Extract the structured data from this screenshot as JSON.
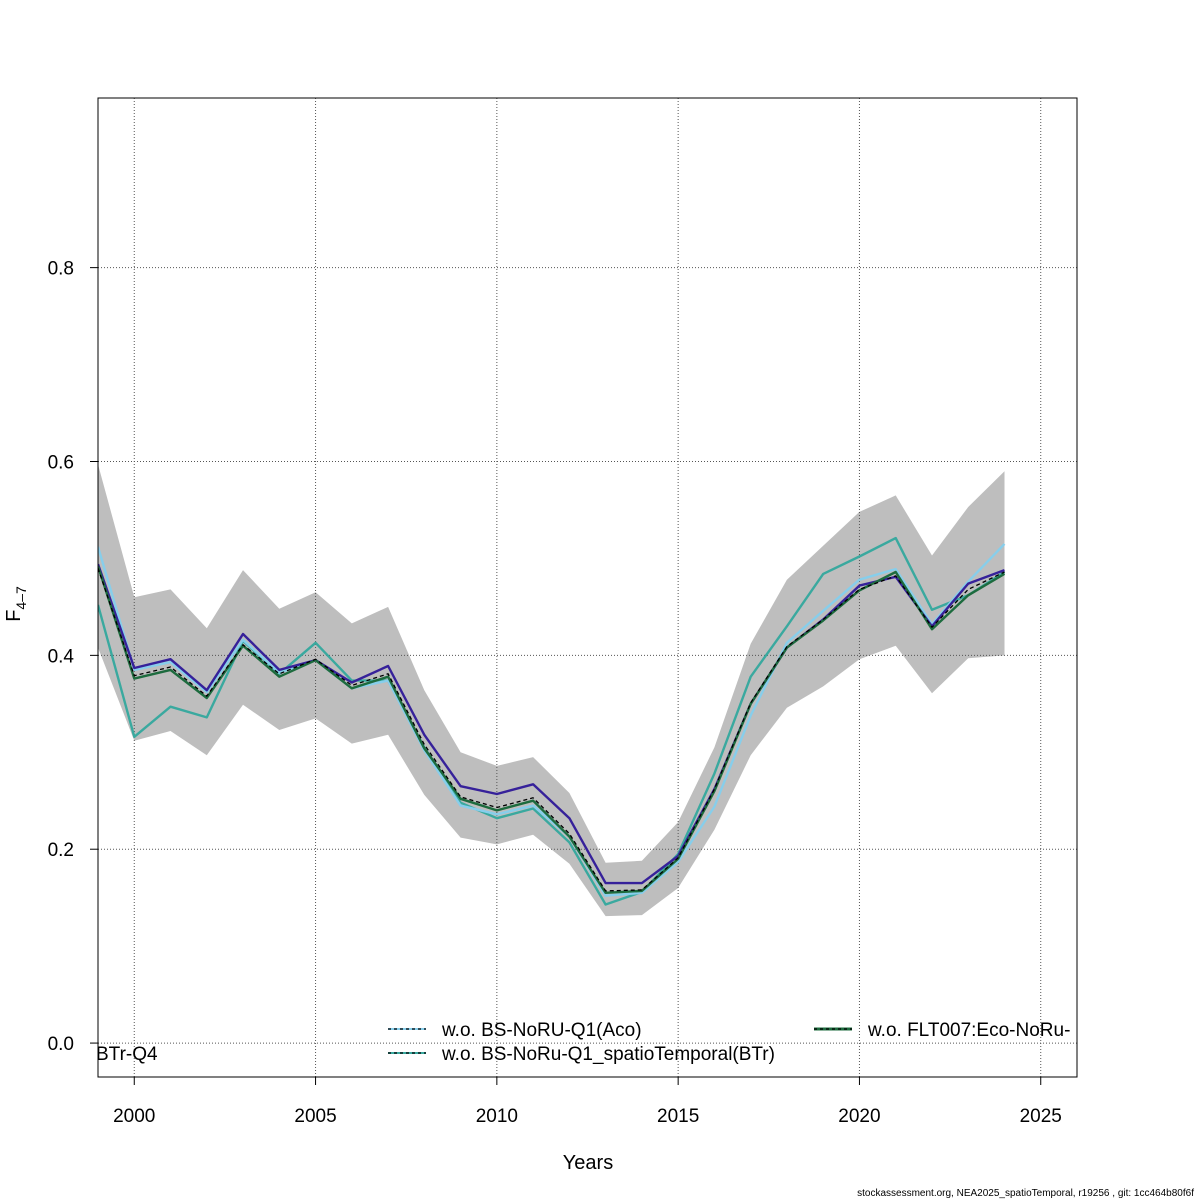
{
  "chart_data": {
    "type": "line",
    "xlabel": "Years",
    "ylabel": "F",
    "ylabel_sub": "4–7",
    "xlim": [
      1999,
      2026
    ],
    "ylim": [
      -0.035,
      0.975
    ],
    "xticks": [
      2000,
      2005,
      2010,
      2015,
      2020,
      2025
    ],
    "yticks": [
      0.0,
      0.2,
      0.4,
      0.6,
      0.8
    ],
    "ytick_labels": [
      "0.0",
      "0.2",
      "0.4",
      "0.6",
      "0.8"
    ],
    "grid": true,
    "x": [
      1999,
      2000,
      2001,
      2002,
      2003,
      2004,
      2005,
      2006,
      2007,
      2008,
      2009,
      2010,
      2011,
      2012,
      2013,
      2014,
      2015,
      2016,
      2017,
      2018,
      2019,
      2020,
      2021,
      2022,
      2023,
      2024
    ],
    "band": {
      "color": "#bebebe",
      "upper": [
        0.597,
        0.46,
        0.468,
        0.428,
        0.488,
        0.448,
        0.465,
        0.433,
        0.45,
        0.364,
        0.3,
        0.286,
        0.295,
        0.258,
        0.186,
        0.188,
        0.228,
        0.305,
        0.412,
        0.478,
        0.513,
        0.548,
        0.565,
        0.503,
        0.553,
        0.59
      ],
      "lower": [
        0.408,
        0.312,
        0.322,
        0.297,
        0.349,
        0.323,
        0.335,
        0.309,
        0.318,
        0.256,
        0.212,
        0.205,
        0.215,
        0.185,
        0.131,
        0.132,
        0.16,
        0.22,
        0.297,
        0.346,
        0.368,
        0.396,
        0.41,
        0.361,
        0.397,
        0.4
      ]
    },
    "series": [
      {
        "color": "#3aa99f",
        "values": [
          0.452,
          0.316,
          0.347,
          0.336,
          0.415,
          0.381,
          0.413,
          0.374,
          0.374,
          0.305,
          0.248,
          0.232,
          0.242,
          0.207,
          0.143,
          0.156,
          0.195,
          0.278,
          0.378,
          0.43,
          0.484,
          0.502,
          0.521,
          0.447,
          0.462,
          0.486
        ]
      },
      {
        "color": "#87ceeb",
        "values": [
          0.512,
          0.385,
          0.393,
          0.362,
          0.416,
          0.382,
          0.395,
          0.366,
          0.374,
          0.302,
          0.245,
          0.236,
          0.245,
          0.213,
          0.152,
          0.155,
          0.187,
          0.244,
          0.338,
          0.413,
          0.446,
          0.478,
          0.489,
          0.432,
          0.476,
          0.515
        ]
      },
      {
        "color": "#36219a",
        "values": [
          0.494,
          0.387,
          0.396,
          0.364,
          0.422,
          0.385,
          0.395,
          0.372,
          0.389,
          0.318,
          0.265,
          0.257,
          0.267,
          0.232,
          0.165,
          0.165,
          0.193,
          0.262,
          0.35,
          0.408,
          0.437,
          0.472,
          0.481,
          0.43,
          0.474,
          0.488
        ]
      },
      {
        "color": "#1d6b3e",
        "values": [
          0.492,
          0.376,
          0.385,
          0.356,
          0.41,
          0.378,
          0.395,
          0.366,
          0.378,
          0.304,
          0.252,
          0.24,
          0.25,
          0.213,
          0.155,
          0.157,
          0.19,
          0.26,
          0.35,
          0.408,
          0.436,
          0.467,
          0.486,
          0.427,
          0.462,
          0.484
        ]
      },
      {
        "color": "#000000",
        "dashed": true,
        "values": [
          0.49,
          0.379,
          0.388,
          0.358,
          0.411,
          0.381,
          0.396,
          0.369,
          0.381,
          0.308,
          0.254,
          0.243,
          0.253,
          0.216,
          0.157,
          0.158,
          0.191,
          0.262,
          0.351,
          0.409,
          0.437,
          0.468,
          0.482,
          0.429,
          0.468,
          0.486
        ]
      }
    ],
    "legend": [
      {
        "label": "w.o. BS-NoRU-Q1(Aco)",
        "color": "#87ceeb"
      },
      {
        "label": "w.o. BS-NoRu-Q1_spatioTemporal(BTr)",
        "color": "#3aa99f"
      },
      {
        "label": "w.o. FLT007:Eco-NoRu-",
        "color": "#1d6b3e"
      }
    ],
    "legend_clipped_text": "BTr-Q4",
    "footer": "stockassessment.org, NEA2025_spatioTemporal, r19256 , git: 1cc464b80f6f"
  }
}
